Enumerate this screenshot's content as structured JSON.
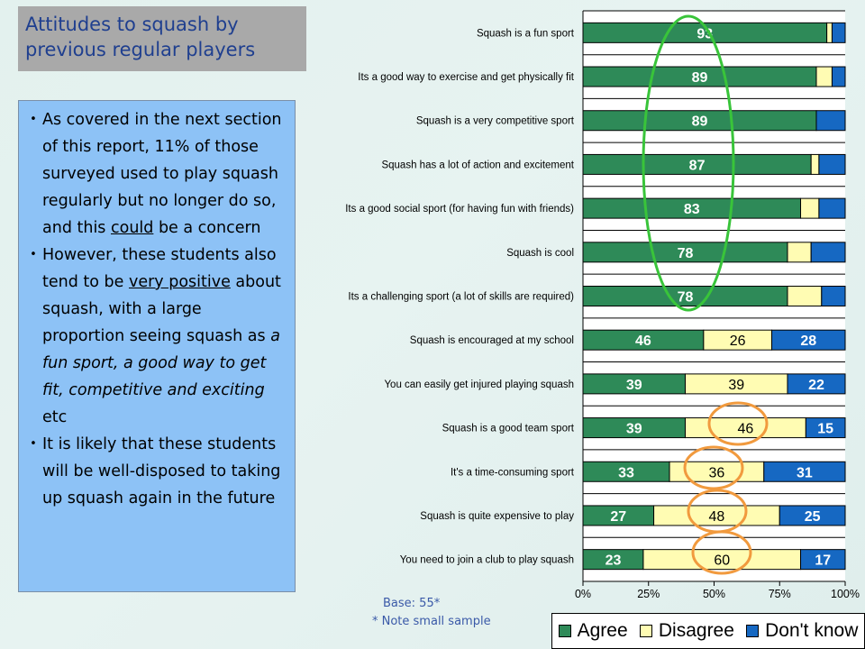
{
  "title": "Attitudes to squash by previous regular players",
  "bullets": [
    [
      {
        "t": "As covered in the next section of this report, 11% of those surveyed used to play squash regularly but no longer do so, and this "
      },
      {
        "t": "could",
        "s": "u"
      },
      {
        "t": " be a concern"
      }
    ],
    [
      {
        "t": "However, these students also tend to be "
      },
      {
        "t": "very positive",
        "s": "u"
      },
      {
        "t": " about squash, with a large proportion seeing squash as "
      },
      {
        "t": "a fun sport, a good way to get fit, competitive and exciting",
        "s": "i"
      },
      {
        "t": " etc"
      }
    ],
    [
      {
        "t": "It is likely that these students will be well-disposed to taking up squash again in the future"
      }
    ]
  ],
  "notes": {
    "base": "Base: 55*",
    "small_sample": "* Note small sample"
  },
  "colors": {
    "agree": "#2e8a58",
    "disagree": "#fffcb3",
    "dont_know": "#1668c2",
    "green_ellipse": "#39c43a",
    "orange_circle": "#f19a3e"
  },
  "chart_data": {
    "type": "bar",
    "orientation": "horizontal",
    "stacked": true,
    "categories": [
      "Squash is a fun sport",
      "Its a good way to exercise and get physically fit",
      "Squash is a very competitive sport",
      "Squash has a lot of action and excitement",
      "Its a good social sport (for having fun with friends)",
      "Squash is cool",
      "Its a challenging sport (a lot of skills are required)",
      "Squash is encouraged at my school",
      "You can easily get injured playing squash",
      "Squash is a good team sport",
      "It's a time-consuming sport",
      "Squash is quite expensive to play",
      "You need to join a club to play squash"
    ],
    "series": [
      {
        "name": "Agree",
        "values": [
          93,
          89,
          89,
          87,
          83,
          78,
          78,
          46,
          39,
          39,
          33,
          27,
          23
        ]
      },
      {
        "name": "Disagree",
        "values": [
          2,
          6,
          0,
          3,
          7,
          9,
          13,
          26,
          39,
          46,
          36,
          48,
          60
        ]
      },
      {
        "name": "Don't know",
        "values": [
          5,
          5,
          11,
          10,
          10,
          13,
          9,
          28,
          22,
          15,
          31,
          25,
          17
        ]
      }
    ],
    "data_labels": {
      "Agree": [
        "93",
        "89",
        "89",
        "87",
        "83",
        "78",
        "78",
        "46",
        "39",
        "39",
        "33",
        "27",
        "23"
      ],
      "Disagree": [
        "",
        "",
        "",
        "",
        "",
        "",
        "",
        "26",
        "39",
        "46",
        "36",
        "48",
        "60"
      ],
      "Don't know": [
        "",
        "",
        "",
        "",
        "",
        "",
        "",
        "28",
        "22",
        "15",
        "31",
        "25",
        "17"
      ]
    },
    "x_ticks": [
      "0%",
      "25%",
      "50%",
      "75%",
      "100%"
    ],
    "xlim": [
      0,
      100
    ],
    "legend": [
      "Agree",
      "Disagree",
      "Don't know"
    ],
    "legend_position": "bottom-right",
    "highlights": {
      "green_ellipse_rows": [
        0,
        1,
        2,
        3,
        4,
        5,
        6
      ],
      "orange_circle_rows": [
        9,
        10,
        11,
        12
      ]
    }
  }
}
